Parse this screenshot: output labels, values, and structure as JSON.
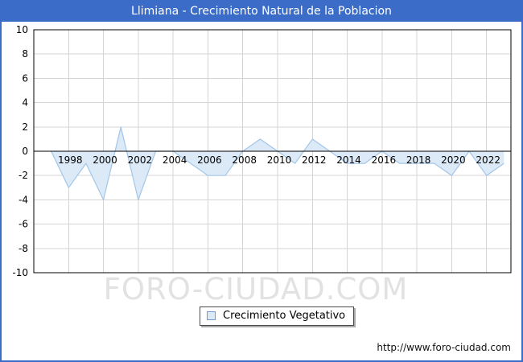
{
  "page": {
    "title": "Llimiana - Crecimiento Natural de la Poblacion",
    "watermark": "FORO-CIUDAD.COM",
    "footer_url": "http://www.foro-ciudad.com"
  },
  "legend": {
    "label": "Crecimiento Vegetativo"
  },
  "colors": {
    "titlebar_bg": "#3b6cc7",
    "frame_border": "#3b6cc7",
    "area_fill": "#dce9f7",
    "area_line": "#a3c6e8",
    "grid": "#d4d4d4",
    "zero_line": "#000000",
    "plot_border": "#000000",
    "tick_text": "#000000",
    "watermark_text": "#e2e2e2",
    "legend_marker_fill": "#dce9f7",
    "legend_marker_border": "#6f9bd1"
  },
  "chart_data": {
    "type": "area",
    "title": "Llimiana - Crecimiento Natural de la Poblacion",
    "xlabel": "",
    "ylabel": "",
    "ylim": [
      -10,
      10
    ],
    "yticks": [
      10,
      8,
      6,
      4,
      2,
      0,
      -2,
      -4,
      -6,
      -8,
      -10
    ],
    "xticks": [
      1998,
      2000,
      2002,
      2004,
      2006,
      2008,
      2010,
      2012,
      2014,
      2016,
      2018,
      2020,
      2022
    ],
    "x_axis_span": [
      1996,
      2023.4
    ],
    "grid": true,
    "baseline": 0,
    "legend_position": "bottom-center",
    "series": [
      {
        "name": "Crecimiento Vegetativo",
        "x": [
          1997,
          1998,
          1999,
          2000,
          2001,
          2002,
          2003,
          2004,
          2005,
          2006,
          2007,
          2008,
          2009,
          2010,
          2011,
          2012,
          2013,
          2014,
          2015,
          2016,
          2017,
          2018,
          2019,
          2020,
          2021,
          2022,
          2023
        ],
        "values": [
          0,
          -3,
          -1,
          -4,
          2,
          -4,
          0,
          0,
          -1,
          -2,
          -2,
          0,
          1,
          0,
          -1,
          1,
          0,
          -1,
          -1,
          0,
          -1,
          -1,
          -1,
          -2,
          0,
          -2,
          -1
        ]
      }
    ]
  }
}
